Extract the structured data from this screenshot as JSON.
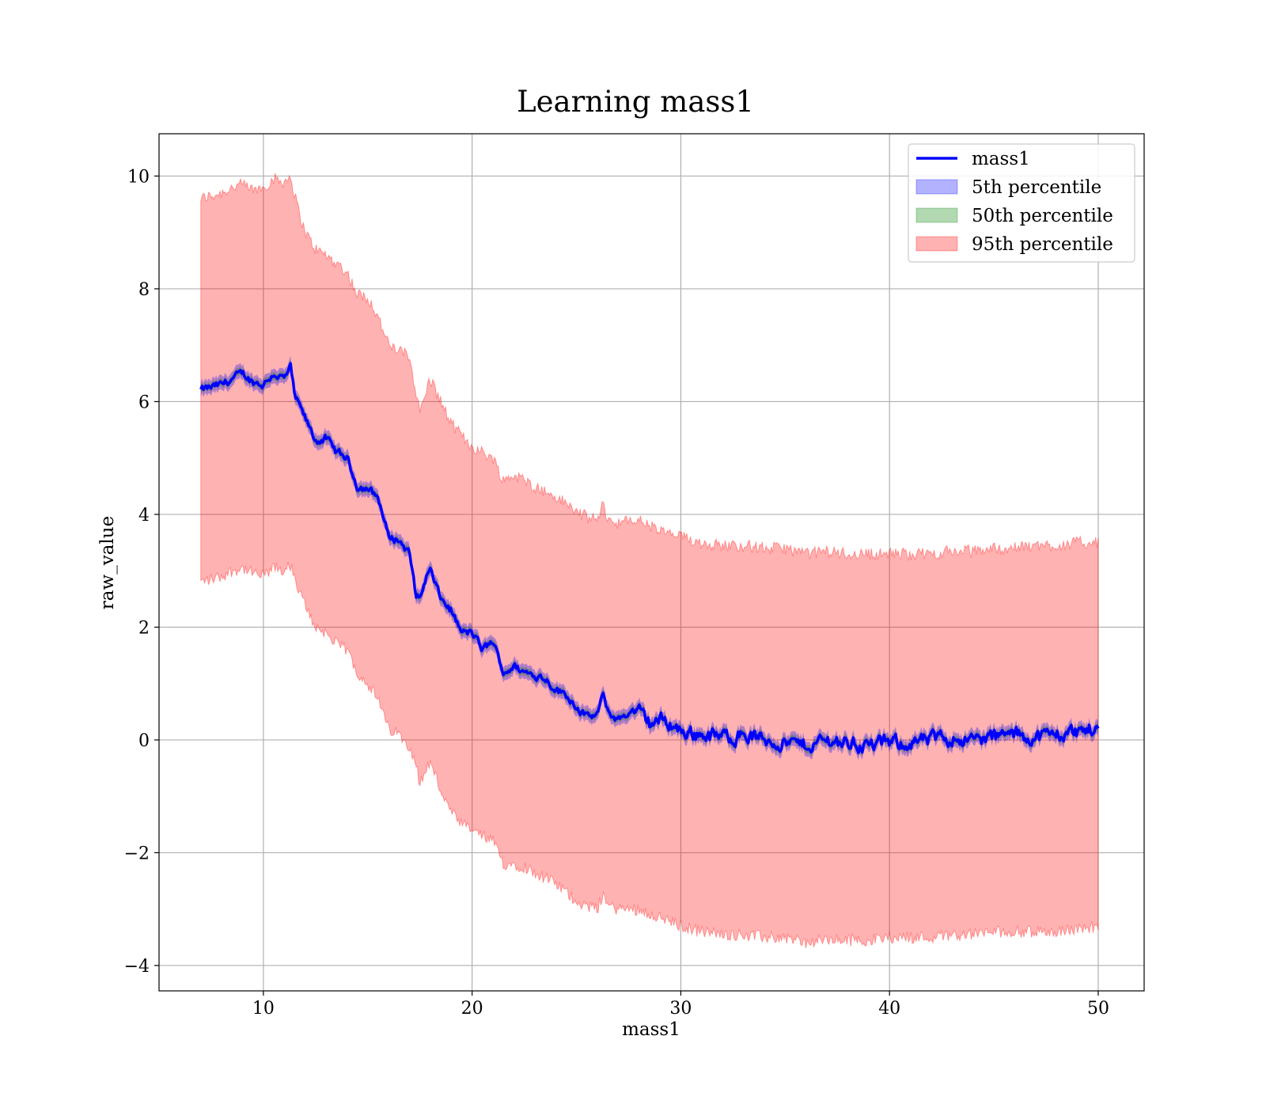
{
  "chart_data": {
    "type": "line",
    "title": "Learning mass1",
    "xlabel": "mass1",
    "ylabel": "raw_value",
    "xlim": [
      5,
      52.2
    ],
    "ylim": [
      -4.45,
      10.75
    ],
    "xticks": [
      10,
      20,
      30,
      40,
      50
    ],
    "yticks": [
      -4,
      -2,
      0,
      2,
      4,
      6,
      8,
      10
    ],
    "xtick_labels": [
      "10",
      "20",
      "30",
      "40",
      "50"
    ],
    "ytick_labels": [
      "−4",
      "−2",
      "0",
      "2",
      "4",
      "6",
      "8",
      "10"
    ],
    "grid": true,
    "legend_position": "top-right",
    "series": [
      {
        "name": "mass1",
        "type": "line",
        "color": "#0000ff",
        "x": [
          7,
          8,
          9,
          9.5,
          10,
          10.5,
          11,
          11.3,
          11.5,
          12,
          12.5,
          13,
          13.5,
          14,
          14.5,
          15,
          15.5,
          16,
          16.5,
          17,
          17.3,
          17.5,
          17.8,
          18,
          18.5,
          19,
          19.5,
          20,
          20.5,
          21,
          21.5,
          22,
          22.5,
          23,
          23.5,
          24,
          24.5,
          25,
          25.5,
          26,
          26.3,
          26.5,
          27,
          27.5,
          28,
          28.5,
          29,
          29.5,
          30,
          31,
          32,
          33,
          34,
          35,
          36,
          37,
          38,
          39,
          40,
          41,
          42,
          43,
          44,
          45,
          46,
          47,
          48,
          49,
          50
        ],
        "y": [
          6.2,
          6.3,
          6.5,
          6.35,
          6.3,
          6.5,
          6.4,
          6.6,
          6.1,
          5.7,
          5.3,
          5.35,
          5.1,
          5.0,
          4.5,
          4.45,
          4.3,
          3.6,
          3.55,
          3.3,
          2.6,
          2.5,
          2.9,
          3.0,
          2.5,
          2.3,
          1.9,
          1.9,
          1.6,
          1.75,
          1.2,
          1.3,
          1.2,
          1.15,
          1.1,
          0.9,
          0.8,
          0.6,
          0.4,
          0.45,
          0.8,
          0.5,
          0.35,
          0.5,
          0.5,
          0.3,
          0.35,
          0.3,
          0.15,
          0.1,
          0.05,
          0.1,
          0.0,
          -0.05,
          -0.1,
          0.0,
          -0.05,
          -0.1,
          -0.05,
          -0.05,
          0.0,
          0.05,
          0.0,
          0.05,
          0.1,
          0.05,
          0.1,
          0.15,
          0.2
        ]
      },
      {
        "name": "5th percentile",
        "type": "band",
        "color": "#0000ff",
        "opacity": 0.3,
        "half_width": 0.13
      },
      {
        "name": "50th percentile",
        "type": "band",
        "color": "#008000",
        "opacity": 0.3,
        "half_width": 0.07
      },
      {
        "name": "95th percentile",
        "type": "band",
        "color": "#ff0000",
        "opacity": 0.3,
        "x": [
          7,
          7.5,
          8,
          8.5,
          9,
          9.5,
          10,
          10.5,
          11,
          11.3,
          11.6,
          12,
          12.5,
          13,
          13.5,
          14,
          14.5,
          15,
          15.5,
          16,
          16.5,
          17,
          17.3,
          17.5,
          17.8,
          18,
          18.5,
          19,
          19.5,
          20,
          20.5,
          21,
          21.5,
          22,
          22.5,
          23,
          23.5,
          24,
          24.5,
          25,
          25.5,
          26,
          26.3,
          26.5,
          27,
          28,
          29,
          30,
          31,
          32,
          33,
          34,
          35,
          36,
          37,
          38,
          39,
          40,
          41,
          42,
          43,
          44,
          45,
          46,
          47,
          48,
          49,
          50
        ],
        "upper": [
          9.6,
          9.65,
          9.7,
          9.8,
          9.85,
          9.75,
          9.8,
          9.95,
          9.9,
          10.0,
          9.5,
          9.0,
          8.7,
          8.6,
          8.45,
          8.3,
          7.9,
          7.85,
          7.5,
          7.0,
          6.9,
          6.8,
          6.2,
          5.8,
          6.2,
          6.4,
          6.0,
          5.6,
          5.4,
          5.2,
          5.1,
          5.0,
          4.6,
          4.7,
          4.6,
          4.5,
          4.4,
          4.3,
          4.2,
          4.05,
          3.95,
          3.9,
          4.2,
          3.9,
          3.85,
          3.9,
          3.7,
          3.6,
          3.5,
          3.45,
          3.45,
          3.4,
          3.4,
          3.3,
          3.35,
          3.3,
          3.3,
          3.3,
          3.3,
          3.3,
          3.35,
          3.35,
          3.4,
          3.4,
          3.45,
          3.45,
          3.5,
          3.5
        ],
        "lower": [
          2.8,
          2.85,
          2.9,
          3.0,
          3.05,
          2.95,
          2.9,
          3.05,
          3.0,
          3.1,
          2.7,
          2.4,
          2.0,
          1.9,
          1.7,
          1.6,
          1.2,
          1.0,
          0.7,
          0.2,
          0.1,
          -0.1,
          -0.4,
          -0.8,
          -0.5,
          -0.4,
          -0.9,
          -1.3,
          -1.5,
          -1.6,
          -1.7,
          -1.8,
          -2.2,
          -2.2,
          -2.25,
          -2.35,
          -2.45,
          -2.55,
          -2.7,
          -2.85,
          -2.95,
          -3.0,
          -2.7,
          -2.95,
          -3.0,
          -3.0,
          -3.15,
          -3.3,
          -3.4,
          -3.45,
          -3.45,
          -3.5,
          -3.5,
          -3.6,
          -3.55,
          -3.55,
          -3.55,
          -3.5,
          -3.5,
          -3.5,
          -3.45,
          -3.45,
          -3.4,
          -3.4,
          -3.4,
          -3.4,
          -3.35,
          -3.3
        ]
      }
    ]
  }
}
